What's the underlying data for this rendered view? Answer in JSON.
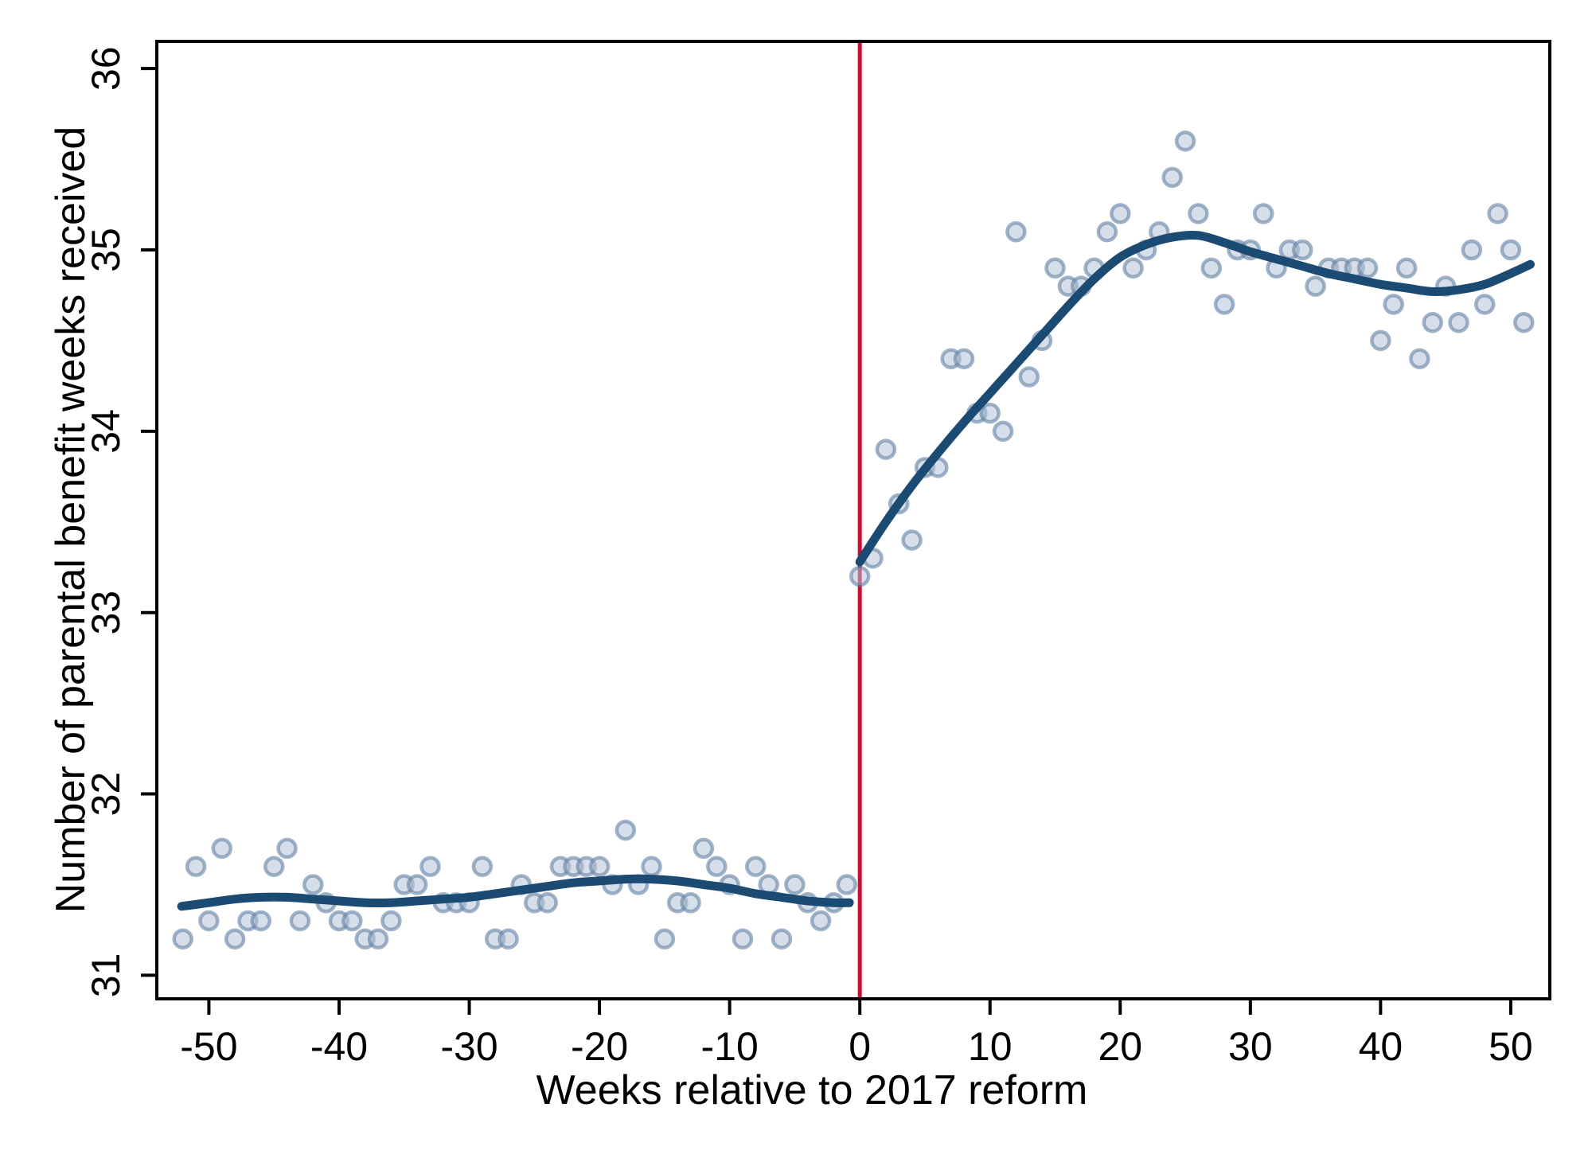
{
  "chart_data": {
    "type": "scatter",
    "title": "",
    "xlabel": "Weeks relative to 2017 reform",
    "ylabel": "Number of parental benefit weeks received",
    "xlim": [
      -54,
      53
    ],
    "ylim": [
      30.87,
      36.15
    ],
    "x_ticks": [
      -50,
      -40,
      -30,
      -20,
      -10,
      0,
      10,
      20,
      30,
      40,
      50
    ],
    "y_ticks": [
      31,
      32,
      33,
      34,
      35,
      36
    ],
    "grid": false,
    "legend": "none",
    "reference_line": {
      "orientation": "vertical",
      "x": 0
    },
    "colors": {
      "fit_line": "#1b4a72",
      "cutoff_line": "#c11236",
      "point_fill": "#b4c3d7",
      "point_stroke": "#6381a4",
      "axis": "#000000",
      "background": "#ffffff"
    },
    "series": {
      "pre_reform_points": [
        [
          -52,
          31.2
        ],
        [
          -51,
          31.6
        ],
        [
          -50,
          31.3
        ],
        [
          -49,
          31.7
        ],
        [
          -48,
          31.2
        ],
        [
          -47,
          31.3
        ],
        [
          -46,
          31.3
        ],
        [
          -45,
          31.6
        ],
        [
          -44,
          31.7
        ],
        [
          -43,
          31.3
        ],
        [
          -42,
          31.5
        ],
        [
          -41,
          31.4
        ],
        [
          -40,
          31.3
        ],
        [
          -39,
          31.3
        ],
        [
          -38,
          31.2
        ],
        [
          -37,
          31.2
        ],
        [
          -36,
          31.3
        ],
        [
          -35,
          31.5
        ],
        [
          -34,
          31.5
        ],
        [
          -33,
          31.6
        ],
        [
          -32,
          31.4
        ],
        [
          -31,
          31.4
        ],
        [
          -30,
          31.4
        ],
        [
          -29,
          31.6
        ],
        [
          -28,
          31.2
        ],
        [
          -27,
          31.2
        ],
        [
          -26,
          31.5
        ],
        [
          -25,
          31.4
        ],
        [
          -24,
          31.4
        ],
        [
          -23,
          31.6
        ],
        [
          -22,
          31.6
        ],
        [
          -21,
          31.6
        ],
        [
          -20,
          31.6
        ],
        [
          -19,
          31.5
        ],
        [
          -18,
          31.8
        ],
        [
          -17,
          31.5
        ],
        [
          -16,
          31.6
        ],
        [
          -15,
          31.2
        ],
        [
          -14,
          31.4
        ],
        [
          -13,
          31.4
        ],
        [
          -12,
          31.7
        ],
        [
          -11,
          31.6
        ],
        [
          -10,
          31.5
        ],
        [
          -9,
          31.2
        ],
        [
          -8,
          31.6
        ],
        [
          -7,
          31.5
        ],
        [
          -6,
          31.2
        ],
        [
          -5,
          31.5
        ],
        [
          -4,
          31.4
        ],
        [
          -3,
          31.3
        ],
        [
          -2,
          31.4
        ],
        [
          -1,
          31.5
        ]
      ],
      "post_reform_points": [
        [
          0,
          33.2
        ],
        [
          1,
          33.3
        ],
        [
          2,
          33.9
        ],
        [
          3,
          33.6
        ],
        [
          4,
          33.4
        ],
        [
          5,
          33.8
        ],
        [
          6,
          33.8
        ],
        [
          7,
          34.4
        ],
        [
          8,
          34.4
        ],
        [
          9,
          34.1
        ],
        [
          10,
          34.1
        ],
        [
          11,
          34.0
        ],
        [
          12,
          35.1
        ],
        [
          13,
          34.3
        ],
        [
          14,
          34.5
        ],
        [
          15,
          34.9
        ],
        [
          16,
          34.8
        ],
        [
          17,
          34.8
        ],
        [
          18,
          34.9
        ],
        [
          19,
          35.1
        ],
        [
          20,
          35.2
        ],
        [
          21,
          34.9
        ],
        [
          22,
          35.0
        ],
        [
          23,
          35.1
        ],
        [
          24,
          35.4
        ],
        [
          25,
          35.6
        ],
        [
          26,
          35.2
        ],
        [
          27,
          34.9
        ],
        [
          28,
          34.7
        ],
        [
          29,
          35.0
        ],
        [
          30,
          35.0
        ],
        [
          31,
          35.2
        ],
        [
          32,
          34.9
        ],
        [
          33,
          35.0
        ],
        [
          34,
          35.0
        ],
        [
          35,
          34.8
        ],
        [
          36,
          34.9
        ],
        [
          37,
          34.9
        ],
        [
          38,
          34.9
        ],
        [
          39,
          34.9
        ],
        [
          40,
          34.5
        ],
        [
          41,
          34.7
        ],
        [
          42,
          34.9
        ],
        [
          43,
          34.4
        ],
        [
          44,
          34.6
        ],
        [
          45,
          34.8
        ],
        [
          46,
          34.6
        ],
        [
          47,
          35.0
        ],
        [
          48,
          34.7
        ],
        [
          49,
          35.2
        ],
        [
          50,
          35.0
        ],
        [
          51,
          34.6
        ]
      ],
      "pre_reform_fit": [
        [
          -52.1,
          31.38
        ],
        [
          -50,
          31.4
        ],
        [
          -48,
          31.42
        ],
        [
          -46,
          31.43
        ],
        [
          -44,
          31.43
        ],
        [
          -42,
          31.42
        ],
        [
          -40,
          31.41
        ],
        [
          -38,
          31.4
        ],
        [
          -36,
          31.4
        ],
        [
          -34,
          31.41
        ],
        [
          -32,
          31.42
        ],
        [
          -30,
          31.43
        ],
        [
          -28,
          31.45
        ],
        [
          -26,
          31.47
        ],
        [
          -24,
          31.49
        ],
        [
          -22,
          31.51
        ],
        [
          -20,
          31.52
        ],
        [
          -18,
          31.53
        ],
        [
          -16,
          31.53
        ],
        [
          -14,
          31.52
        ],
        [
          -12,
          31.5
        ],
        [
          -10,
          31.48
        ],
        [
          -8,
          31.45
        ],
        [
          -6,
          31.43
        ],
        [
          -4,
          31.41
        ],
        [
          -2,
          31.4
        ],
        [
          -0.8,
          31.4
        ]
      ],
      "post_reform_fit": [
        [
          0,
          33.28
        ],
        [
          2,
          33.5
        ],
        [
          4,
          33.7
        ],
        [
          6,
          33.88
        ],
        [
          8,
          34.05
        ],
        [
          10,
          34.21
        ],
        [
          12,
          34.37
        ],
        [
          14,
          34.53
        ],
        [
          16,
          34.69
        ],
        [
          18,
          34.84
        ],
        [
          20,
          34.96
        ],
        [
          22,
          35.03
        ],
        [
          24,
          35.07
        ],
        [
          26,
          35.08
        ],
        [
          28,
          35.04
        ],
        [
          30,
          34.99
        ],
        [
          32,
          34.95
        ],
        [
          34,
          34.91
        ],
        [
          36,
          34.87
        ],
        [
          38,
          34.84
        ],
        [
          40,
          34.81
        ],
        [
          42,
          34.79
        ],
        [
          44,
          34.77
        ],
        [
          46,
          34.78
        ],
        [
          48,
          34.81
        ],
        [
          50,
          34.87
        ],
        [
          51.5,
          34.92
        ]
      ]
    }
  }
}
